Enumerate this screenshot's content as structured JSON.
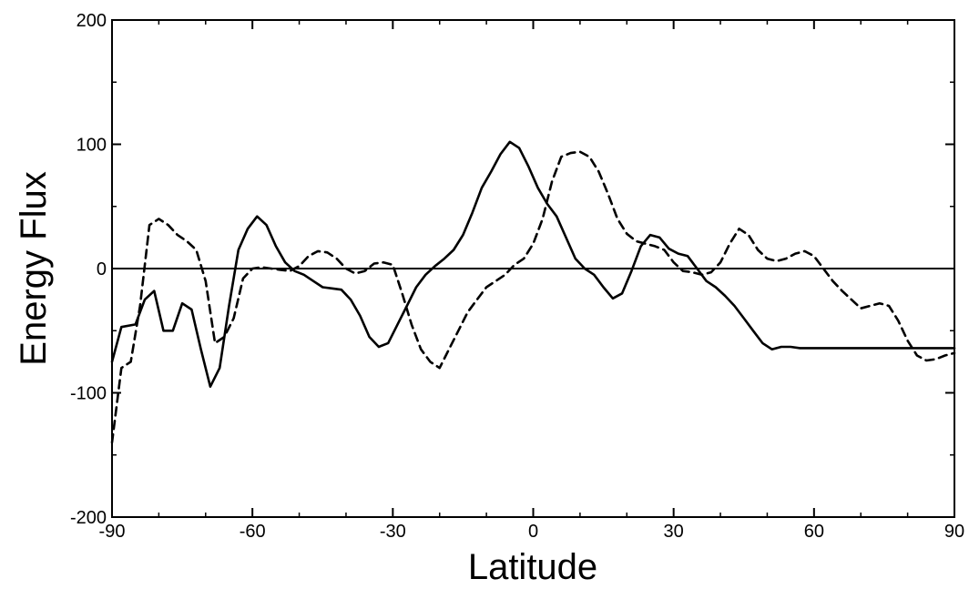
{
  "chart_data": {
    "type": "line",
    "title": "",
    "xlabel": "Latitude",
    "ylabel": "Energy Flux",
    "xlim": [
      -90,
      90
    ],
    "ylim": [
      -200,
      200
    ],
    "xticks": [
      -90,
      -60,
      -30,
      0,
      30,
      60,
      90
    ],
    "yticks": [
      -200,
      -100,
      0,
      100,
      200
    ],
    "grid": false,
    "legend": "none",
    "reference_line": 0,
    "series": [
      {
        "style": "solid",
        "color": "#000000",
        "x": [
          -90,
          -88,
          -85,
          -83,
          -81,
          -79,
          -77,
          -75,
          -73,
          -71,
          -69,
          -67,
          -65,
          -63,
          -61,
          -59,
          -57,
          -55,
          -53,
          -51,
          -49,
          -47,
          -45,
          -43,
          -41,
          -39,
          -37,
          -35,
          -33,
          -31,
          -29,
          -27,
          -25,
          -23,
          -21,
          -19,
          -17,
          -15,
          -13,
          -11,
          -9,
          -7,
          -5,
          -3,
          -1,
          1,
          3,
          5,
          7,
          9,
          11,
          13,
          15,
          17,
          19,
          21,
          23,
          25,
          27,
          29,
          31,
          33,
          35,
          37,
          39,
          41,
          43,
          45,
          47,
          49,
          51,
          53,
          55,
          57,
          59,
          61,
          63,
          65,
          67,
          69,
          71,
          73,
          75,
          77,
          79,
          81,
          83,
          85,
          87,
          90
        ],
        "y": [
          -75,
          -47,
          -45,
          -25,
          -18,
          -50,
          -50,
          -28,
          -33,
          -65,
          -95,
          -80,
          -30,
          15,
          32,
          42,
          35,
          18,
          5,
          -2,
          -5,
          -10,
          -15,
          -16,
          -17,
          -25,
          -38,
          -55,
          -63,
          -60,
          -45,
          -30,
          -15,
          -5,
          2,
          8,
          15,
          27,
          45,
          65,
          78,
          92,
          102,
          97,
          82,
          65,
          52,
          42,
          25,
          8,
          0,
          -5,
          -15,
          -24,
          -20,
          -2,
          18,
          27,
          25,
          16,
          12,
          10,
          0,
          -10,
          -15,
          -22,
          -30,
          -40,
          -50,
          -60,
          -65,
          -63,
          -63,
          -64,
          -64,
          -64,
          -64,
          -64,
          -64,
          -64,
          -64,
          -64,
          -64,
          -64,
          -64,
          -64,
          -64,
          -64,
          -64,
          -64
        ],
        "x_note": ""
      },
      {
        "style": "dashed",
        "color": "#000000",
        "x": [
          -90,
          -88,
          -86,
          -84,
          -82,
          -80,
          -78,
          -76,
          -74,
          -72,
          -70,
          -68,
          -66,
          -64,
          -62,
          -60,
          -58,
          -56,
          -54,
          -52,
          -50,
          -48,
          -46,
          -44,
          -42,
          -40,
          -38,
          -36,
          -34,
          -32,
          -30,
          -28,
          -26,
          -24,
          -22,
          -20,
          -18,
          -16,
          -14,
          -12,
          -10,
          -8,
          -6,
          -4,
          -2,
          0,
          2,
          4,
          6,
          8,
          10,
          12,
          14,
          16,
          18,
          20,
          22,
          24,
          26,
          28,
          30,
          32,
          34,
          36,
          38,
          40,
          42,
          44,
          46,
          48,
          50,
          52,
          54,
          56,
          58,
          60,
          62,
          64,
          66,
          68,
          70,
          72,
          74,
          76,
          78,
          80,
          82,
          84,
          86,
          88,
          90
        ],
        "y": [
          -140,
          -80,
          -75,
          -30,
          35,
          40,
          35,
          27,
          22,
          15,
          -10,
          -60,
          -55,
          -40,
          -8,
          0,
          1,
          0,
          -1,
          -2,
          2,
          10,
          14,
          13,
          8,
          0,
          -4,
          -2,
          4,
          5,
          3,
          -20,
          -45,
          -65,
          -75,
          -80,
          -65,
          -50,
          -35,
          -25,
          -15,
          -10,
          -5,
          3,
          8,
          20,
          40,
          70,
          90,
          93,
          94,
          90,
          78,
          60,
          40,
          28,
          22,
          20,
          18,
          15,
          5,
          -2,
          -3,
          -5,
          -3,
          5,
          20,
          32,
          27,
          15,
          8,
          6,
          8,
          12,
          14,
          10,
          0,
          -10,
          -18,
          -25,
          -32,
          -30,
          -28,
          -30,
          -42,
          -58,
          -70,
          -74,
          -73,
          -70,
          -68
        ],
        "x_note": ""
      }
    ]
  }
}
